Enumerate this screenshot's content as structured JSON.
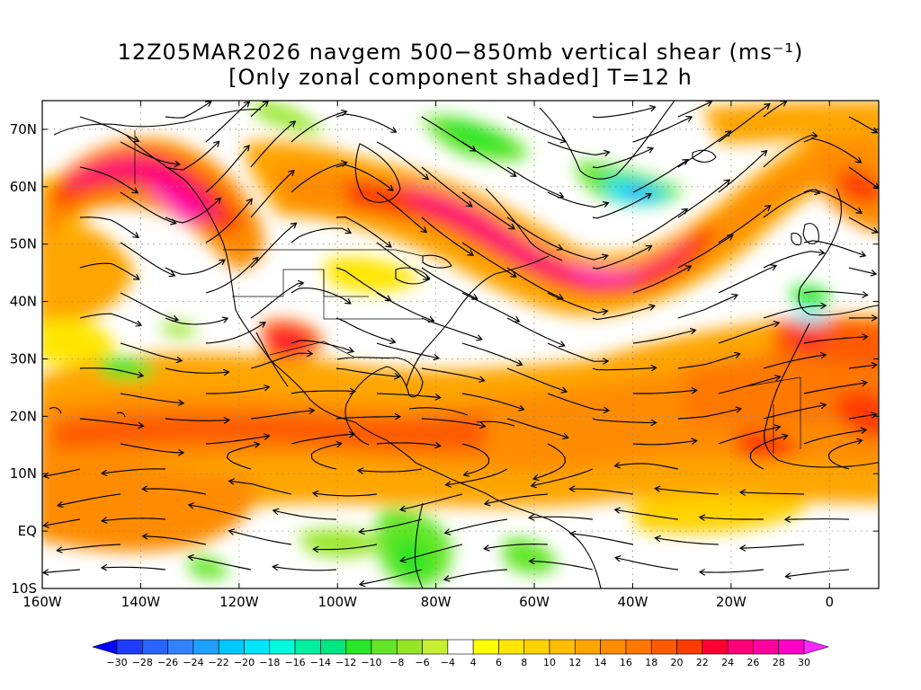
{
  "title": {
    "line1": "12Z05MAR2026 navgem 500−850mb vertical shear (ms⁻¹)",
    "line2": "[Only zonal component shaded] T=12 h"
  },
  "map": {
    "projection": "cylindrical-equidistant",
    "lon_range": [
      -160,
      10
    ],
    "lat_range": [
      -10,
      75
    ],
    "lat_ticks": [
      {
        "value": 70,
        "label": "70N"
      },
      {
        "value": 60,
        "label": "60N"
      },
      {
        "value": 50,
        "label": "50N"
      },
      {
        "value": 40,
        "label": "40N"
      },
      {
        "value": 30,
        "label": "30N"
      },
      {
        "value": 20,
        "label": "20N"
      },
      {
        "value": 10,
        "label": "10N"
      },
      {
        "value": 0,
        "label": "EQ"
      },
      {
        "value": -10,
        "label": "10S"
      }
    ],
    "lon_ticks": [
      {
        "value": -160,
        "label": "160W"
      },
      {
        "value": -140,
        "label": "140W"
      },
      {
        "value": -120,
        "label": "120W"
      },
      {
        "value": -100,
        "label": "100W"
      },
      {
        "value": -80,
        "label": "80W"
      },
      {
        "value": -60,
        "label": "60W"
      },
      {
        "value": -40,
        "label": "40W"
      },
      {
        "value": -20,
        "label": "20W"
      },
      {
        "value": 0,
        "label": "0"
      }
    ],
    "grid": true,
    "grid_style": "dotted"
  },
  "chart_data": {
    "type": "heatmap",
    "variable": "zonal vertical shear 500-850mb",
    "units": "ms-1",
    "overlay": "shear streamlines",
    "colorbar": {
      "levels": [
        -30,
        -28,
        -26,
        -24,
        -22,
        -20,
        -18,
        -16,
        -14,
        -12,
        -10,
        -8,
        -6,
        -4,
        4,
        6,
        8,
        10,
        12,
        14,
        16,
        18,
        20,
        22,
        24,
        26,
        28,
        30
      ],
      "labels": [
        "−30",
        "−28",
        "−26",
        "−24",
        "−22",
        "−20",
        "−18",
        "−16",
        "−14",
        "−12",
        "−10",
        "−8",
        "−6",
        "−4",
        "4",
        "6",
        "8",
        "10",
        "12",
        "14",
        "16",
        "18",
        "20",
        "22",
        "24",
        "26",
        "28",
        "30"
      ],
      "colors": [
        "#0000ff",
        "#1e3cff",
        "#2864ff",
        "#3282ff",
        "#1ea0ff",
        "#00c8ff",
        "#00e6ff",
        "#00fadc",
        "#00f0a0",
        "#00e682",
        "#28e628",
        "#64e628",
        "#96e628",
        "#c8f032",
        "#ffffff",
        "#ffff00",
        "#ffe600",
        "#ffd200",
        "#ffbe00",
        "#ffa500",
        "#ff8c00",
        "#ff7800",
        "#ff5a00",
        "#ff3c00",
        "#ff0032",
        "#ff0078",
        "#ff00a0",
        "#ff00c8",
        "#ff28ff"
      ],
      "extend": "both"
    },
    "features": [
      {
        "name": "NE Pacific jet",
        "lon_range": [
          -150,
          -110
        ],
        "lat_range": [
          48,
          68
        ],
        "max_shear": 28
      },
      {
        "name": "North American / N Atlantic jet",
        "lon_range": [
          -100,
          -35
        ],
        "lat_range": [
          43,
          62
        ],
        "max_shear": 28
      },
      {
        "name": "Subtropical westerly band",
        "lon_range": [
          -160,
          10
        ],
        "lat_range": [
          5,
          32
        ],
        "max_shear": 22
      },
      {
        "name": "Greenland/Labrador easterly shear",
        "lon_range": [
          -48,
          -35
        ],
        "lat_range": [
          56,
          62
        ],
        "min_shear": -18
      },
      {
        "name": "Amazon easterly shear",
        "lon_range": [
          -90,
          -60
        ],
        "lat_range": [
          -10,
          2
        ],
        "min_shear": -10
      }
    ]
  }
}
